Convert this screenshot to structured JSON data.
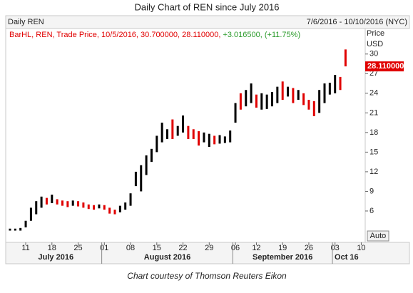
{
  "chart_data": {
    "type": "hl_bar",
    "title": "Daily Chart of REN since July 2016",
    "header_left": "Daily REN",
    "header_right": "7/6/2016 - 10/10/2016 (NYC)",
    "legend_text": "BarHL, REN, Trade Price, 10/5/2016, 30.700000, 28.110000,",
    "legend_change": "+3.016500, (+11.75%)",
    "y_axis_label": [
      "Price",
      "USD"
    ],
    "last_price": {
      "value": 28.11,
      "label": "28.110000"
    },
    "button": "Auto",
    "footer": "Chart courtesy of Thomson Reuters Eikon",
    "months": [
      "July 2016",
      "August 2016",
      "September 2016",
      "Oct 16"
    ],
    "categories": [
      null,
      null,
      null,
      "11",
      null,
      null,
      null,
      null,
      "18",
      null,
      null,
      null,
      null,
      "25",
      null,
      null,
      null,
      null,
      "01",
      null,
      null,
      null,
      null,
      "08",
      null,
      null,
      null,
      null,
      "15",
      null,
      null,
      null,
      null,
      "22",
      null,
      null,
      null,
      null,
      "29",
      null,
      null,
      null,
      null,
      "06",
      null,
      null,
      null,
      "12",
      null,
      null,
      null,
      null,
      "19",
      null,
      null,
      null,
      null,
      "26",
      null,
      null,
      null,
      null,
      "03",
      null,
      null,
      null,
      null,
      "10"
    ],
    "highs": [
      3.3,
      3.3,
      3.4,
      4.5,
      6.5,
      7.5,
      8.2,
      8.0,
      8.5,
      7.8,
      7.6,
      7.5,
      7.6,
      7.5,
      7.3,
      7.0,
      6.9,
      7.0,
      6.9,
      6.5,
      6.2,
      6.8,
      7.3,
      8.7,
      12.0,
      13.0,
      14.5,
      15.5,
      17.5,
      19.5,
      18.5,
      20.0,
      19.0,
      20.6,
      19.0,
      18.5,
      18.2,
      18.0,
      17.8,
      17.5,
      17.6,
      17.4,
      18.3,
      22.5,
      24.0,
      24.5,
      25.5,
      23.8,
      24.0,
      23.8,
      24.2,
      25.0,
      25.8,
      25.0,
      24.8,
      24.5,
      24.0,
      23.0,
      22.8,
      24.5,
      25.5,
      25.6,
      26.8,
      26.5,
      30.7,
      null,
      null,
      null
    ],
    "lows": [
      3.0,
      3.0,
      3.0,
      3.5,
      4.5,
      5.5,
      6.5,
      7.0,
      7.2,
      7.0,
      6.8,
      6.6,
      6.8,
      6.7,
      6.5,
      6.3,
      6.2,
      6.4,
      6.2,
      5.6,
      5.5,
      5.8,
      6.2,
      6.8,
      9.8,
      9.0,
      11.5,
      13.5,
      15.0,
      16.5,
      17.0,
      17.0,
      17.5,
      18.0,
      17.0,
      17.0,
      16.0,
      16.5,
      15.8,
      16.2,
      16.3,
      16.4,
      16.5,
      19.5,
      21.5,
      22.0,
      22.5,
      21.8,
      21.5,
      21.6,
      22.0,
      22.5,
      23.0,
      23.5,
      22.5,
      23.0,
      22.2,
      21.5,
      20.5,
      21.0,
      22.5,
      23.8,
      24.0,
      24.5,
      28.11,
      null,
      null,
      null
    ],
    "colors": [
      "#000",
      "#000",
      "#000",
      "#000",
      "#000",
      "#000",
      "#000",
      "#e00000",
      "#000",
      "#e00000",
      "#e00000",
      "#e00000",
      "#000",
      "#e00000",
      "#e00000",
      "#e00000",
      "#e00000",
      "#000",
      "#e00000",
      "#e00000",
      "#e00000",
      "#000",
      "#000",
      "#000",
      "#000",
      "#000",
      "#000",
      "#000",
      "#000",
      "#000",
      "#000",
      "#e00000",
      "#000",
      "#000",
      "#e00000",
      "#e00000",
      "#e00000",
      "#000",
      "#000",
      "#e00000",
      "#000",
      "#000",
      "#000",
      "#000",
      "#e00000",
      "#000",
      "#000",
      "#e00000",
      "#000",
      "#000",
      "#000",
      "#000",
      "#e00000",
      "#000",
      "#e00000",
      "#000",
      "#e00000",
      "#e00000",
      "#e00000",
      "#000",
      "#000",
      "#000",
      "#000",
      "#e00000",
      "#e00000",
      null,
      null,
      null
    ],
    "legend_color": "#e00000",
    "change_color": "#2a9a2a",
    "ylim": [
      1.2,
      33.9
    ],
    "yticks": [
      6,
      9,
      12,
      15,
      18,
      21,
      24,
      27,
      30
    ]
  }
}
